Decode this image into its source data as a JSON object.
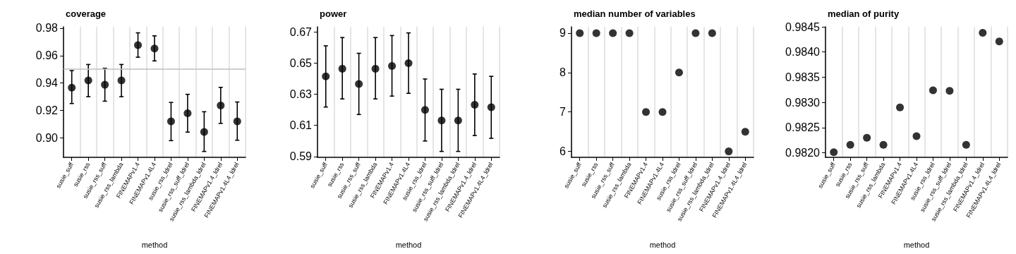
{
  "chart_data": [
    {
      "type": "scatter",
      "title": "coverage",
      "xlabel": "method",
      "categories": [
        "susie_suff",
        "susie_rss",
        "susie_rss_suff",
        "susie_rss_lambda",
        "FINEMAPv1.4",
        "FINEMAPv1.4L4",
        "susie_rss_ldrel",
        "susie_rss_suff_ldrel",
        "susie_rss_lambda_ldrel",
        "FINEMAPv1.4_ldrel",
        "FINEMAPv1.4L4_ldrel"
      ],
      "series": [
        {
          "color": "#000000",
          "values": [
            0.9366,
            0.9418,
            0.9387,
            0.9418,
            0.9676,
            0.9652,
            0.912,
            0.9179,
            0.9043,
            0.9236,
            0.912
          ],
          "errors": [
            [
              0.925,
              0.949
            ],
            [
              0.93,
              0.9535
            ],
            [
              0.9267,
              0.9507
            ],
            [
              0.93,
              0.9535
            ],
            [
              0.9588,
              0.9766
            ],
            [
              0.9561,
              0.9744
            ],
            [
              0.8979,
              0.9258
            ],
            [
              0.9041,
              0.9317
            ],
            [
              0.89,
              0.919
            ],
            [
              0.9105,
              0.9368
            ],
            [
              0.8982,
              0.9261
            ]
          ]
        }
      ],
      "ylim": [
        0.8857,
        0.981
      ],
      "yticks": [
        {
          "value": 0.9,
          "label": "0.90"
        },
        0.92,
        0.94,
        0.96,
        0.98
      ],
      "ref_lines": [
        {
          "axis": "y",
          "value": 0.95,
          "label": null,
          "color": "#bfbfbf"
        }
      ],
      "grid": "x",
      "marker": "circle"
    },
    {
      "type": "scatter",
      "title": "power",
      "xlabel": "method",
      "categories": [
        "susie_suff",
        "susie_rss",
        "susie_rss_suff",
        "susie_rss_lambda",
        "FINEMAPv1.4",
        "FINEMAPv1.4L4",
        "susie_rss_ldrel",
        "susie_rss_suff_ldrel",
        "susie_rss_lambda_ldrel",
        "FINEMAPv1.4_ldrel",
        "FINEMAPv1.4L4_ldrel"
      ],
      "series": [
        {
          "color": "#000000",
          "values": [
            0.6415,
            0.6464,
            0.6366,
            0.6464,
            0.6482,
            0.65,
            0.62,
            0.6132,
            0.6132,
            0.6232,
            0.6217
          ],
          "errors": [
            [
              0.6218,
              0.6611
            ],
            [
              0.627,
              0.6664
            ],
            [
              0.617,
              0.6563
            ],
            [
              0.627,
              0.6664
            ],
            [
              0.6288,
              0.6677
            ],
            [
              0.6306,
              0.6694
            ],
            [
              0.6,
              0.6398
            ],
            [
              0.5933,
              0.6332
            ],
            [
              0.5933,
              0.6332
            ],
            [
              0.6035,
              0.643
            ],
            [
              0.6017,
              0.6415
            ]
          ]
        }
      ],
      "ylim": [
        0.5895,
        0.6733
      ],
      "yticks": [
        0.59,
        0.61,
        0.63,
        0.65,
        0.67
      ],
      "grid": "x",
      "marker": "circle"
    },
    {
      "type": "scatter",
      "title": "median number of variables",
      "xlabel": "method",
      "categories": [
        "susie_suff",
        "susie_rss",
        "susie_rss_suff",
        "susie_rss_lambda",
        "FINEMAPv1.4",
        "FINEMAPv1.4L4",
        "susie_rss_ldrel",
        "susie_rss_suff_ldrel",
        "susie_rss_lambda_ldrel",
        "FINEMAPv1.4_ldrel",
        "FINEMAPv1.4L4_ldrel"
      ],
      "series": [
        {
          "color": "#000000",
          "values": [
            9,
            9,
            9,
            9,
            7,
            7,
            8,
            9,
            9,
            6,
            6.5
          ]
        }
      ],
      "ylim": [
        5.85,
        9.16
      ],
      "yticks": [
        6,
        7,
        8,
        9
      ],
      "grid": "x",
      "marker": "circle"
    },
    {
      "type": "scatter",
      "title": "median of purity",
      "xlabel": "method",
      "categories": [
        "susie_suff",
        "susie_rss",
        "susie_rss_suff",
        "susie_rss_lambda",
        "FINEMAPv1.4",
        "FINEMAPv1.4L4",
        "susie_rss_ldrel",
        "susie_rss_suff_ldrel",
        "susie_rss_lambda_ldrel",
        "FINEMAPv1.4_ldrel",
        "FINEMAPv1.4L4_ldrel"
      ],
      "series": [
        {
          "color": "#000000",
          "values": [
            0.98201,
            0.98216,
            0.9823,
            0.98216,
            0.9829,
            0.98233,
            0.98324,
            0.98323,
            0.98216,
            0.98438,
            0.98421
          ]
        }
      ],
      "ylim": [
        0.98191,
        0.9845
      ],
      "yticks": [
        {
          "value": 0.982,
          "label": "0.9820"
        },
        {
          "value": 0.9825,
          "label": "0.9825"
        },
        {
          "value": 0.983,
          "label": "0.9830"
        },
        {
          "value": 0.9835,
          "label": "0.9835"
        },
        {
          "value": 0.984,
          "label": "0.9840"
        },
        {
          "value": 0.9845,
          "label": "0.9845"
        }
      ],
      "grid": "x",
      "marker": "circle"
    }
  ]
}
